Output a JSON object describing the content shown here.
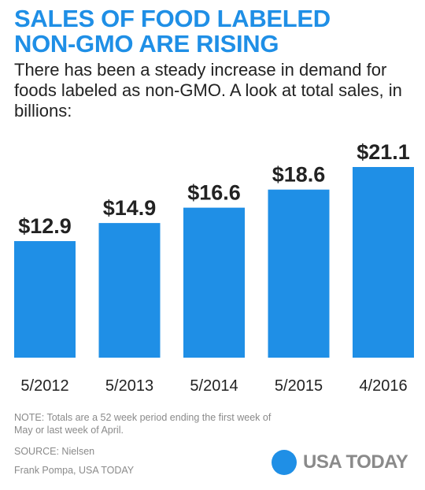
{
  "header": {
    "title_line1": "SALES OF FOOD LABELED",
    "title_line2": "NON-GMO ARE RISING",
    "subtitle": "There has been a steady increase in demand for foods labeled as non-GMO. A look at total sales, in billions:"
  },
  "chart_data": {
    "type": "bar",
    "title": "SALES OF FOOD LABELED NON-GMO ARE RISING",
    "categories": [
      "5/2012",
      "5/2013",
      "5/2014",
      "5/2015",
      "4/2016"
    ],
    "values": [
      12.9,
      14.9,
      16.6,
      18.6,
      21.1
    ],
    "value_labels": [
      "$12.9",
      "$14.9",
      "$16.6",
      "$18.6",
      "$21.1"
    ],
    "ylim": [
      0,
      21.1
    ],
    "grid": false,
    "bar_color": "#1f8fe6"
  },
  "footer": {
    "note": "NOTE:  Totals are a 52 week period ending the first week of May or last week of April.",
    "source": "SOURCE:  Nielsen",
    "credit": "Frank Pompa, USA TODAY",
    "brand": "USA TODAY"
  }
}
